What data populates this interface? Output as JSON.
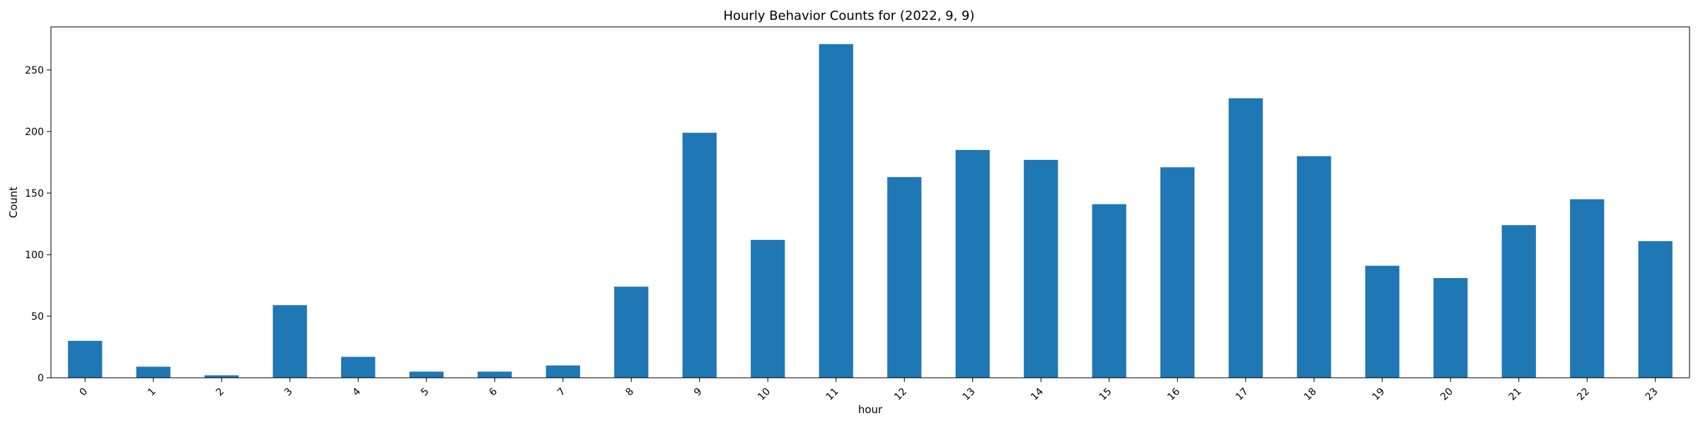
{
  "chart_data": {
    "type": "bar",
    "title": "Hourly Behavior Counts for (2022, 9, 9)",
    "xlabel": "hour",
    "ylabel": "Count",
    "categories": [
      "0",
      "1",
      "2",
      "3",
      "4",
      "5",
      "6",
      "7",
      "8",
      "9",
      "10",
      "11",
      "12",
      "13",
      "14",
      "15",
      "16",
      "17",
      "18",
      "19",
      "20",
      "21",
      "22",
      "23"
    ],
    "values": [
      30,
      9,
      2,
      59,
      17,
      5,
      5,
      10,
      74,
      199,
      112,
      271,
      163,
      185,
      177,
      141,
      171,
      227,
      180,
      91,
      81,
      124,
      145,
      111
    ],
    "ylim": [
      0,
      285
    ],
    "yticks": [
      0,
      50,
      100,
      150,
      200,
      250
    ],
    "grid": false,
    "legend": "none",
    "bar_color": "#1f77b4",
    "xtick_rotation_deg": 45
  }
}
